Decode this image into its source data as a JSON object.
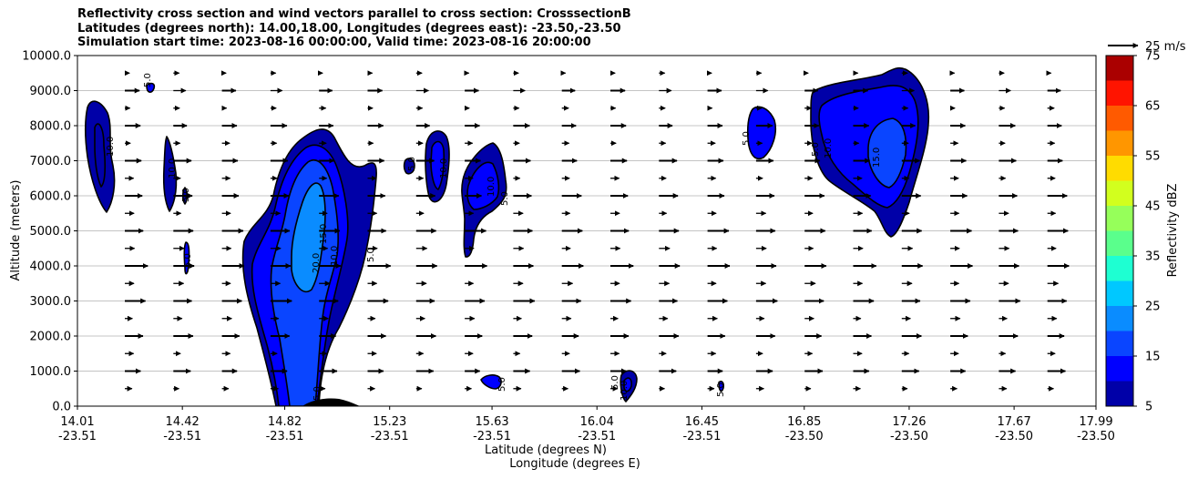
{
  "chart_data": {
    "type": "contour",
    "title_lines": [
      "Reflectivity cross section and wind vectors parallel to cross section: CrosssectionB",
      "Latitudes (degrees north): 14.00,18.00, Longitudes (degrees east): -23.50,-23.50",
      "Simulation start time: 2023-08-16 00:00:00, Valid time: 2023-08-16 20:00:00"
    ],
    "ylabel": "Altitude (meters)",
    "xlabel_lines": [
      "Latitude (degrees N)",
      "Longitude (degrees E)"
    ],
    "ylim": [
      0,
      10000
    ],
    "yticks": [
      {
        "value": 0,
        "label": "0.0"
      },
      {
        "value": 1000,
        "label": "1000.0"
      },
      {
        "value": 2000,
        "label": "2000.0"
      },
      {
        "value": 3000,
        "label": "3000.0"
      },
      {
        "value": 4000,
        "label": "4000.0"
      },
      {
        "value": 5000,
        "label": "5000.0"
      },
      {
        "value": 6000,
        "label": "6000.0"
      },
      {
        "value": 7000,
        "label": "7000.0"
      },
      {
        "value": 8000,
        "label": "8000.0"
      },
      {
        "value": 9000,
        "label": "9000.0"
      },
      {
        "value": 10000,
        "label": "10000.0"
      }
    ],
    "xlim": [
      14.01,
      17.99
    ],
    "xticks": [
      {
        "lat": 14.01,
        "lat_label": "14.01",
        "lon_label": "-23.51"
      },
      {
        "lat": 14.42,
        "lat_label": "14.42",
        "lon_label": "-23.51"
      },
      {
        "lat": 14.82,
        "lat_label": "14.82",
        "lon_label": "-23.51"
      },
      {
        "lat": 15.23,
        "lat_label": "15.23",
        "lon_label": "-23.51"
      },
      {
        "lat": 15.63,
        "lat_label": "15.63",
        "lon_label": "-23.51"
      },
      {
        "lat": 16.04,
        "lat_label": "16.04",
        "lon_label": "-23.51"
      },
      {
        "lat": 16.45,
        "lat_label": "16.45",
        "lon_label": "-23.51"
      },
      {
        "lat": 16.85,
        "lat_label": "16.85",
        "lon_label": "-23.50"
      },
      {
        "lat": 17.26,
        "lat_label": "17.26",
        "lon_label": "-23.50"
      },
      {
        "lat": 17.67,
        "lat_label": "17.67",
        "lon_label": "-23.50"
      },
      {
        "lat": 17.99,
        "lat_label": "17.99",
        "lon_label": "-23.50"
      }
    ],
    "colorbar": {
      "label": "Reflectivity dBZ",
      "levels": [
        5,
        10,
        15,
        20,
        25,
        30,
        35,
        40,
        45,
        50,
        55,
        60,
        65,
        70,
        75
      ],
      "tick_labels": [
        "5",
        "15",
        "25",
        "35",
        "45",
        "55",
        "65",
        "75"
      ],
      "colors": [
        "#0000a8",
        "#0000ff",
        "#0a45ff",
        "#0a8cff",
        "#00c8ff",
        "#1effd2",
        "#5aff8c",
        "#96ff5a",
        "#d2ff1e",
        "#ffdc00",
        "#ff9600",
        "#ff5a00",
        "#ff1400",
        "#aa0000"
      ]
    },
    "wind_key_label": "25 m/s",
    "contour_labels": [
      "5.0",
      "10.0",
      "15.0",
      "20.0"
    ],
    "cells": [
      {
        "name": "cell-a",
        "lat_center": 14.1,
        "alt_top": 8700,
        "alt_bottom": 5500,
        "max_dbz": 10
      },
      {
        "name": "cell-b",
        "lat_center": 14.3,
        "alt_top": 9100,
        "alt_bottom": 8850,
        "max_dbz": 5
      },
      {
        "name": "cell-c",
        "lat_center": 14.39,
        "alt_top": 7700,
        "alt_bottom": 5600,
        "max_dbz": 10
      },
      {
        "name": "cell-d",
        "lat_center": 14.45,
        "alt_top": 4700,
        "alt_bottom": 3700,
        "max_dbz": 5
      },
      {
        "name": "cell-e",
        "lat_center": 14.95,
        "alt_top": 8000,
        "alt_bottom": 0,
        "max_dbz": 20
      },
      {
        "name": "cell-f",
        "lat_center": 15.47,
        "alt_top": 7700,
        "alt_bottom": 5800,
        "max_dbz": 10
      },
      {
        "name": "cell-g",
        "lat_center": 15.6,
        "alt_top": 7500,
        "alt_bottom": 4200,
        "max_dbz": 10
      },
      {
        "name": "cell-h",
        "lat_center": 15.66,
        "alt_top": 800,
        "alt_bottom": 500,
        "max_dbz": 5
      },
      {
        "name": "cell-i",
        "lat_center": 16.13,
        "alt_top": 1000,
        "alt_bottom": 100,
        "max_dbz": 10
      },
      {
        "name": "cell-j",
        "lat_center": 16.45,
        "alt_top": 650,
        "alt_bottom": 350,
        "max_dbz": 5
      },
      {
        "name": "cell-k",
        "lat_center": 16.68,
        "alt_top": 8500,
        "alt_bottom": 7000,
        "max_dbz": 5
      },
      {
        "name": "cell-l",
        "lat_center": 17.2,
        "alt_top": 9600,
        "alt_bottom": 4800,
        "max_dbz": 15
      }
    ]
  }
}
